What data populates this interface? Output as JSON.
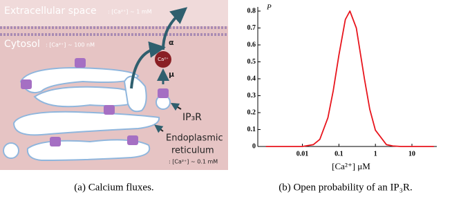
{
  "panel_a": {
    "extracellular": "Extracellular space",
    "extracellular_conc": ": [Ca²⁺] ~ 1 mM",
    "cytosol": "Cytosol",
    "cytosol_conc": ": [Ca²⁺] ~ 100 nM",
    "alpha": "α",
    "ion": "Ca²⁺",
    "mu": "μ",
    "receptor": "IP₃R",
    "er_1": "Endoplasmic",
    "er_2": "reticulum",
    "er_conc": ": [Ca²⁺] ~ 0.1 mM",
    "caption": "(a)  Calcium fluxes."
  },
  "chart_data": {
    "type": "line",
    "caption": "(b)  Open probability of an IP₃R.",
    "xlabel": "[Ca²⁺] μM",
    "ylabel": "P",
    "xscale": "log",
    "xlim": [
      0.0006,
      48
    ],
    "ylim": [
      0,
      0.8
    ],
    "xticks": [
      0.01,
      0.1,
      1,
      10
    ],
    "yticks": [
      0,
      0.1,
      0.2,
      0.3,
      0.4,
      0.5,
      0.6,
      0.7,
      0.8
    ],
    "x": [
      0.001,
      0.003,
      0.01,
      0.02,
      0.03,
      0.05,
      0.07,
      0.1,
      0.15,
      0.2,
      0.3,
      0.5,
      0.7,
      1,
      2,
      3,
      5,
      10,
      40
    ],
    "series": [
      {
        "color": "#e8141c",
        "values": [
          0,
          0,
          0,
          0.011,
          0.042,
          0.17,
          0.33,
          0.54,
          0.75,
          0.8,
          0.7,
          0.4,
          0.22,
          0.096,
          0.011,
          0.003,
          0,
          0,
          0
        ]
      }
    ]
  }
}
